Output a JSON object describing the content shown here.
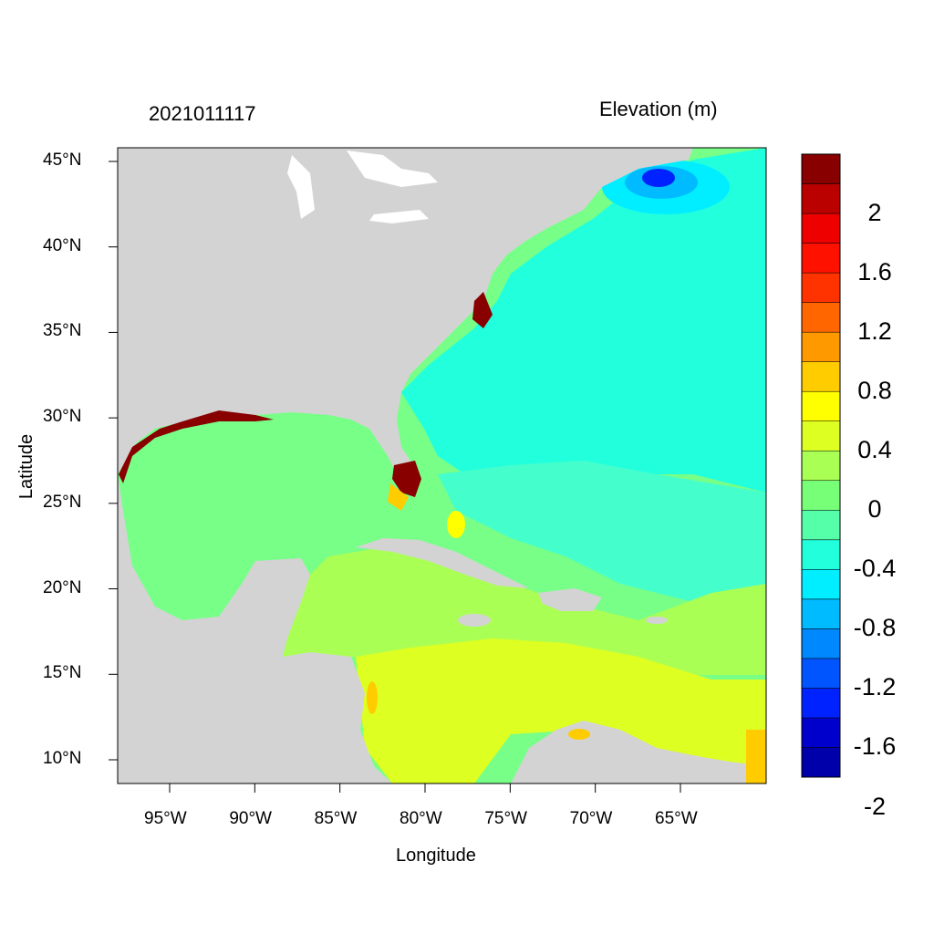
{
  "left_title": "2021011117",
  "right_title": "Elevation (m)",
  "x_axis": {
    "label": "Longitude",
    "ticks": [
      {
        "value": -95,
        "label": "95°W"
      },
      {
        "value": -90,
        "label": "90°W"
      },
      {
        "value": -85,
        "label": "85°W"
      },
      {
        "value": -80,
        "label": "80°W"
      },
      {
        "value": -75,
        "label": "75°W"
      },
      {
        "value": -70,
        "label": "70°W"
      },
      {
        "value": -65,
        "label": "65°W"
      }
    ]
  },
  "y_axis": {
    "label": "Latitude",
    "ticks": [
      {
        "value": 45,
        "label": "45°N"
      },
      {
        "value": 40,
        "label": "40°N"
      },
      {
        "value": 35,
        "label": "35°N"
      },
      {
        "value": 30,
        "label": "30°N"
      },
      {
        "value": 25,
        "label": "25°N"
      },
      {
        "value": 20,
        "label": "20°N"
      },
      {
        "value": 15,
        "label": "15°N"
      },
      {
        "value": 10,
        "label": "10°N"
      }
    ]
  },
  "colorbar": {
    "colors": [
      "#0000aa",
      "#0000cc",
      "#0022ff",
      "#0055ff",
      "#0088ff",
      "#00bbff",
      "#00eeff",
      "#22ffdd",
      "#55ffaa",
      "#77ff77",
      "#aaff55",
      "#ddff22",
      "#ffff00",
      "#ffcc00",
      "#ff9900",
      "#ff6600",
      "#ff3300",
      "#ff1100",
      "#ee0000",
      "#bb0000",
      "#880000"
    ],
    "labels": [
      "2",
      "1.6",
      "1.2",
      "0.8",
      "0.4",
      "0",
      "-0.4",
      "-0.8",
      "-1.2",
      "-1.6",
      "-2"
    ]
  },
  "colors": {
    "land": "#d3d3d3",
    "water_background": "#77ff88",
    "atlantic": "#22ffdd",
    "gulf": "#77ff88",
    "caribbean": "#aaff55",
    "south_caribbean": "#ddff22",
    "deep_low": "#0022ff",
    "high_surge": "#880000"
  }
}
